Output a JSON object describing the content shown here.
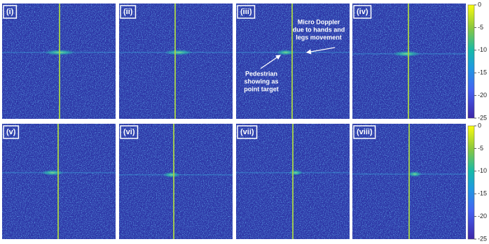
{
  "panels": [
    {
      "label": "(i)"
    },
    {
      "label": "(ii)"
    },
    {
      "label": "(iii)"
    },
    {
      "label": "(iv)"
    },
    {
      "label": "(v)"
    },
    {
      "label": "(vi)"
    },
    {
      "label": "(vii)"
    },
    {
      "label": "(viii)"
    }
  ],
  "annotations": {
    "micro_doppler": [
      "Micro Doppler",
      "due to hands and",
      "legs movement"
    ],
    "pedestrian": [
      "Pedestrian",
      "showing as",
      "point target"
    ]
  },
  "colorbars": [
    {
      "ticks": [
        0,
        -5,
        -10,
        -15,
        -20,
        -25
      ]
    },
    {
      "ticks": [
        0,
        -5,
        -10,
        -15,
        -20,
        -25
      ]
    }
  ]
}
